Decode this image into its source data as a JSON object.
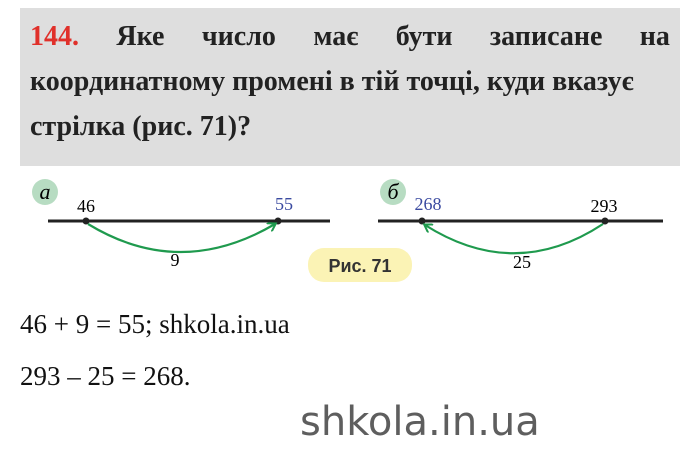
{
  "task": {
    "number": "144.",
    "line1_words": [
      "Яке",
      "число",
      "має",
      "бути",
      "записане",
      "на"
    ],
    "line2": "координатному промені в тій точці, куди вказує",
    "line3": "стрілка (рис. 71)?"
  },
  "figure": {
    "caption": "Рис. 71",
    "a": {
      "label": "а",
      "start": "46",
      "end": "55",
      "step": "9"
    },
    "b": {
      "label": "б",
      "start": "293",
      "end": "268",
      "step": "25"
    }
  },
  "answer": {
    "line1": "46 + 9 = 55; shkola.in.ua",
    "line2": "293 – 25 = 268."
  },
  "watermark": "shkola.in.ua",
  "colors": {
    "number": "#e0302a",
    "arrow": "#1f9a4e",
    "answer_value": "#3a4aa0",
    "box": "#dedede",
    "caption_bg": "#fbf3b5",
    "label_circle": "#b7dcc2"
  }
}
